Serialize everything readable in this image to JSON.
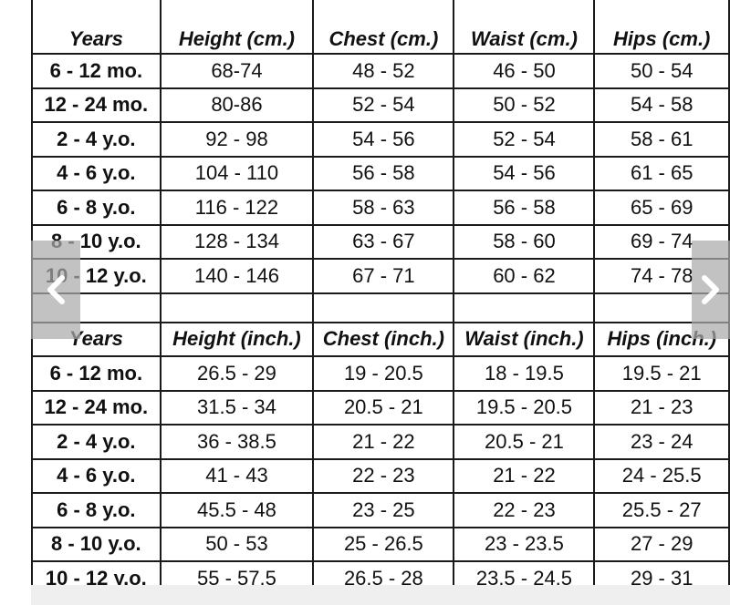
{
  "cm_table": {
    "headers": [
      "Years",
      "Height (cm.)",
      "Chest (cm.)",
      "Waist (cm.)",
      "Hips (cm.)"
    ],
    "rows": [
      [
        "6 - 12 mo.",
        "68-74",
        "48 - 52",
        "46 - 50",
        "50 - 54"
      ],
      [
        "12 - 24 mo.",
        "80-86",
        "52 - 54",
        "50 - 52",
        "54 - 58"
      ],
      [
        "2 - 4 y.o.",
        "92 - 98",
        "54 - 56",
        "52 - 54",
        "58 - 61"
      ],
      [
        "4 - 6 y.o.",
        "104 - 110",
        "56 - 58",
        "54 - 56",
        "61 - 65"
      ],
      [
        "6 - 8 y.o.",
        "116 - 122",
        "58 - 63",
        "56 - 58",
        "65 - 69"
      ],
      [
        "8 - 10 y.o.",
        "128 - 134",
        "63 - 67",
        "58 - 60",
        "69 - 74"
      ],
      [
        "10 - 12 y.o.",
        "140 - 146",
        "67 - 71",
        "60 - 62",
        "74 - 78"
      ]
    ]
  },
  "inch_table": {
    "headers": [
      "Years",
      "Height (inch.)",
      "Chest (inch.)",
      "Waist (inch.)",
      "Hips (inch.)"
    ],
    "rows": [
      [
        "6 - 12 mo.",
        "26.5 - 29",
        "19 - 20.5",
        "18 - 19.5",
        "19.5 - 21"
      ],
      [
        "12 - 24 mo.",
        "31.5 - 34",
        "20.5 - 21",
        "19.5 - 20.5",
        "21 - 23"
      ],
      [
        "2 - 4 y.o.",
        "36 - 38.5",
        "21 - 22",
        "20.5 - 21",
        "23 - 24"
      ],
      [
        "4 - 6 y.o.",
        "41 - 43",
        "22 - 23",
        "21 - 22",
        "24 - 25.5"
      ],
      [
        "6 - 8 y.o.",
        "45.5 - 48",
        "23 - 25",
        "22 - 23",
        "25.5 - 27"
      ],
      [
        "8 - 10 y.o.",
        "50 - 53",
        "25 - 26.5",
        "23 - 23.5",
        "27 - 29"
      ],
      [
        "10 - 12 y.o.",
        "55 - 57.5",
        "26.5 - 28",
        "23.5 - 24.5",
        "29 - 31"
      ]
    ]
  },
  "carousel": {
    "prev_icon": "chevron-left-icon",
    "next_icon": "chevron-right-icon",
    "arrow_bg": "#aaaaaa"
  }
}
